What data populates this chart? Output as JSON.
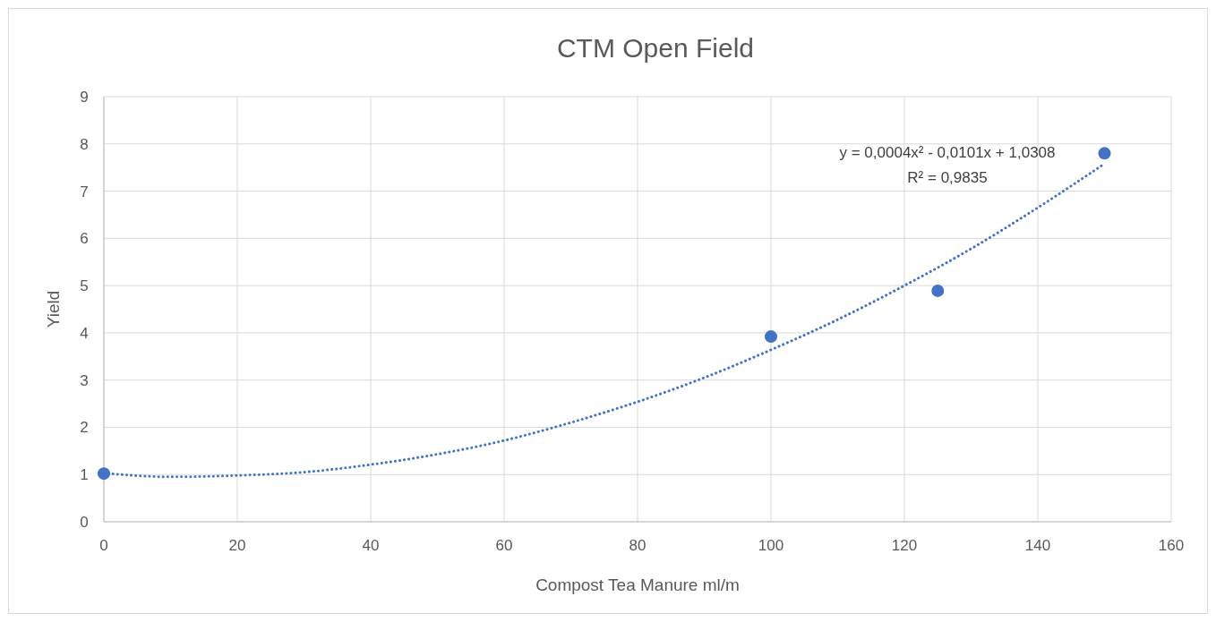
{
  "chart_data": {
    "type": "scatter",
    "title": "CTM Open Field",
    "xlabel": "Compost Tea Manure ml/m",
    "ylabel": "Yield",
    "xlim": [
      0,
      160
    ],
    "xticks": [
      0,
      20,
      40,
      60,
      80,
      100,
      120,
      140,
      160
    ],
    "ylim": [
      0,
      9
    ],
    "yticks": [
      0,
      1,
      2,
      3,
      4,
      5,
      6,
      7,
      8,
      9
    ],
    "grid": true,
    "series": [
      {
        "color": "#4472c4",
        "marker": "circle",
        "x": [
          0,
          100,
          125,
          150
        ],
        "values": [
          1.02,
          3.92,
          4.89,
          7.8
        ]
      },
      {
        "type": "line",
        "color": "#4472c4",
        "marker": "none",
        "line_style": "dotted",
        "x": [
          0,
          10,
          20,
          30,
          40,
          50,
          60,
          70,
          80,
          90,
          100,
          110,
          120,
          130,
          140,
          150
        ],
        "values": [
          1.03,
          0.95,
          0.98,
          1.05,
          1.21,
          1.43,
          1.72,
          2.1,
          2.54,
          3.05,
          3.64,
          4.28,
          5.0,
          5.78,
          6.65,
          7.58
        ]
      }
    ],
    "annotations": [
      "y = 0,0004x² - 0,0101x + 1,0308",
      "R² = 0,9835"
    ]
  }
}
